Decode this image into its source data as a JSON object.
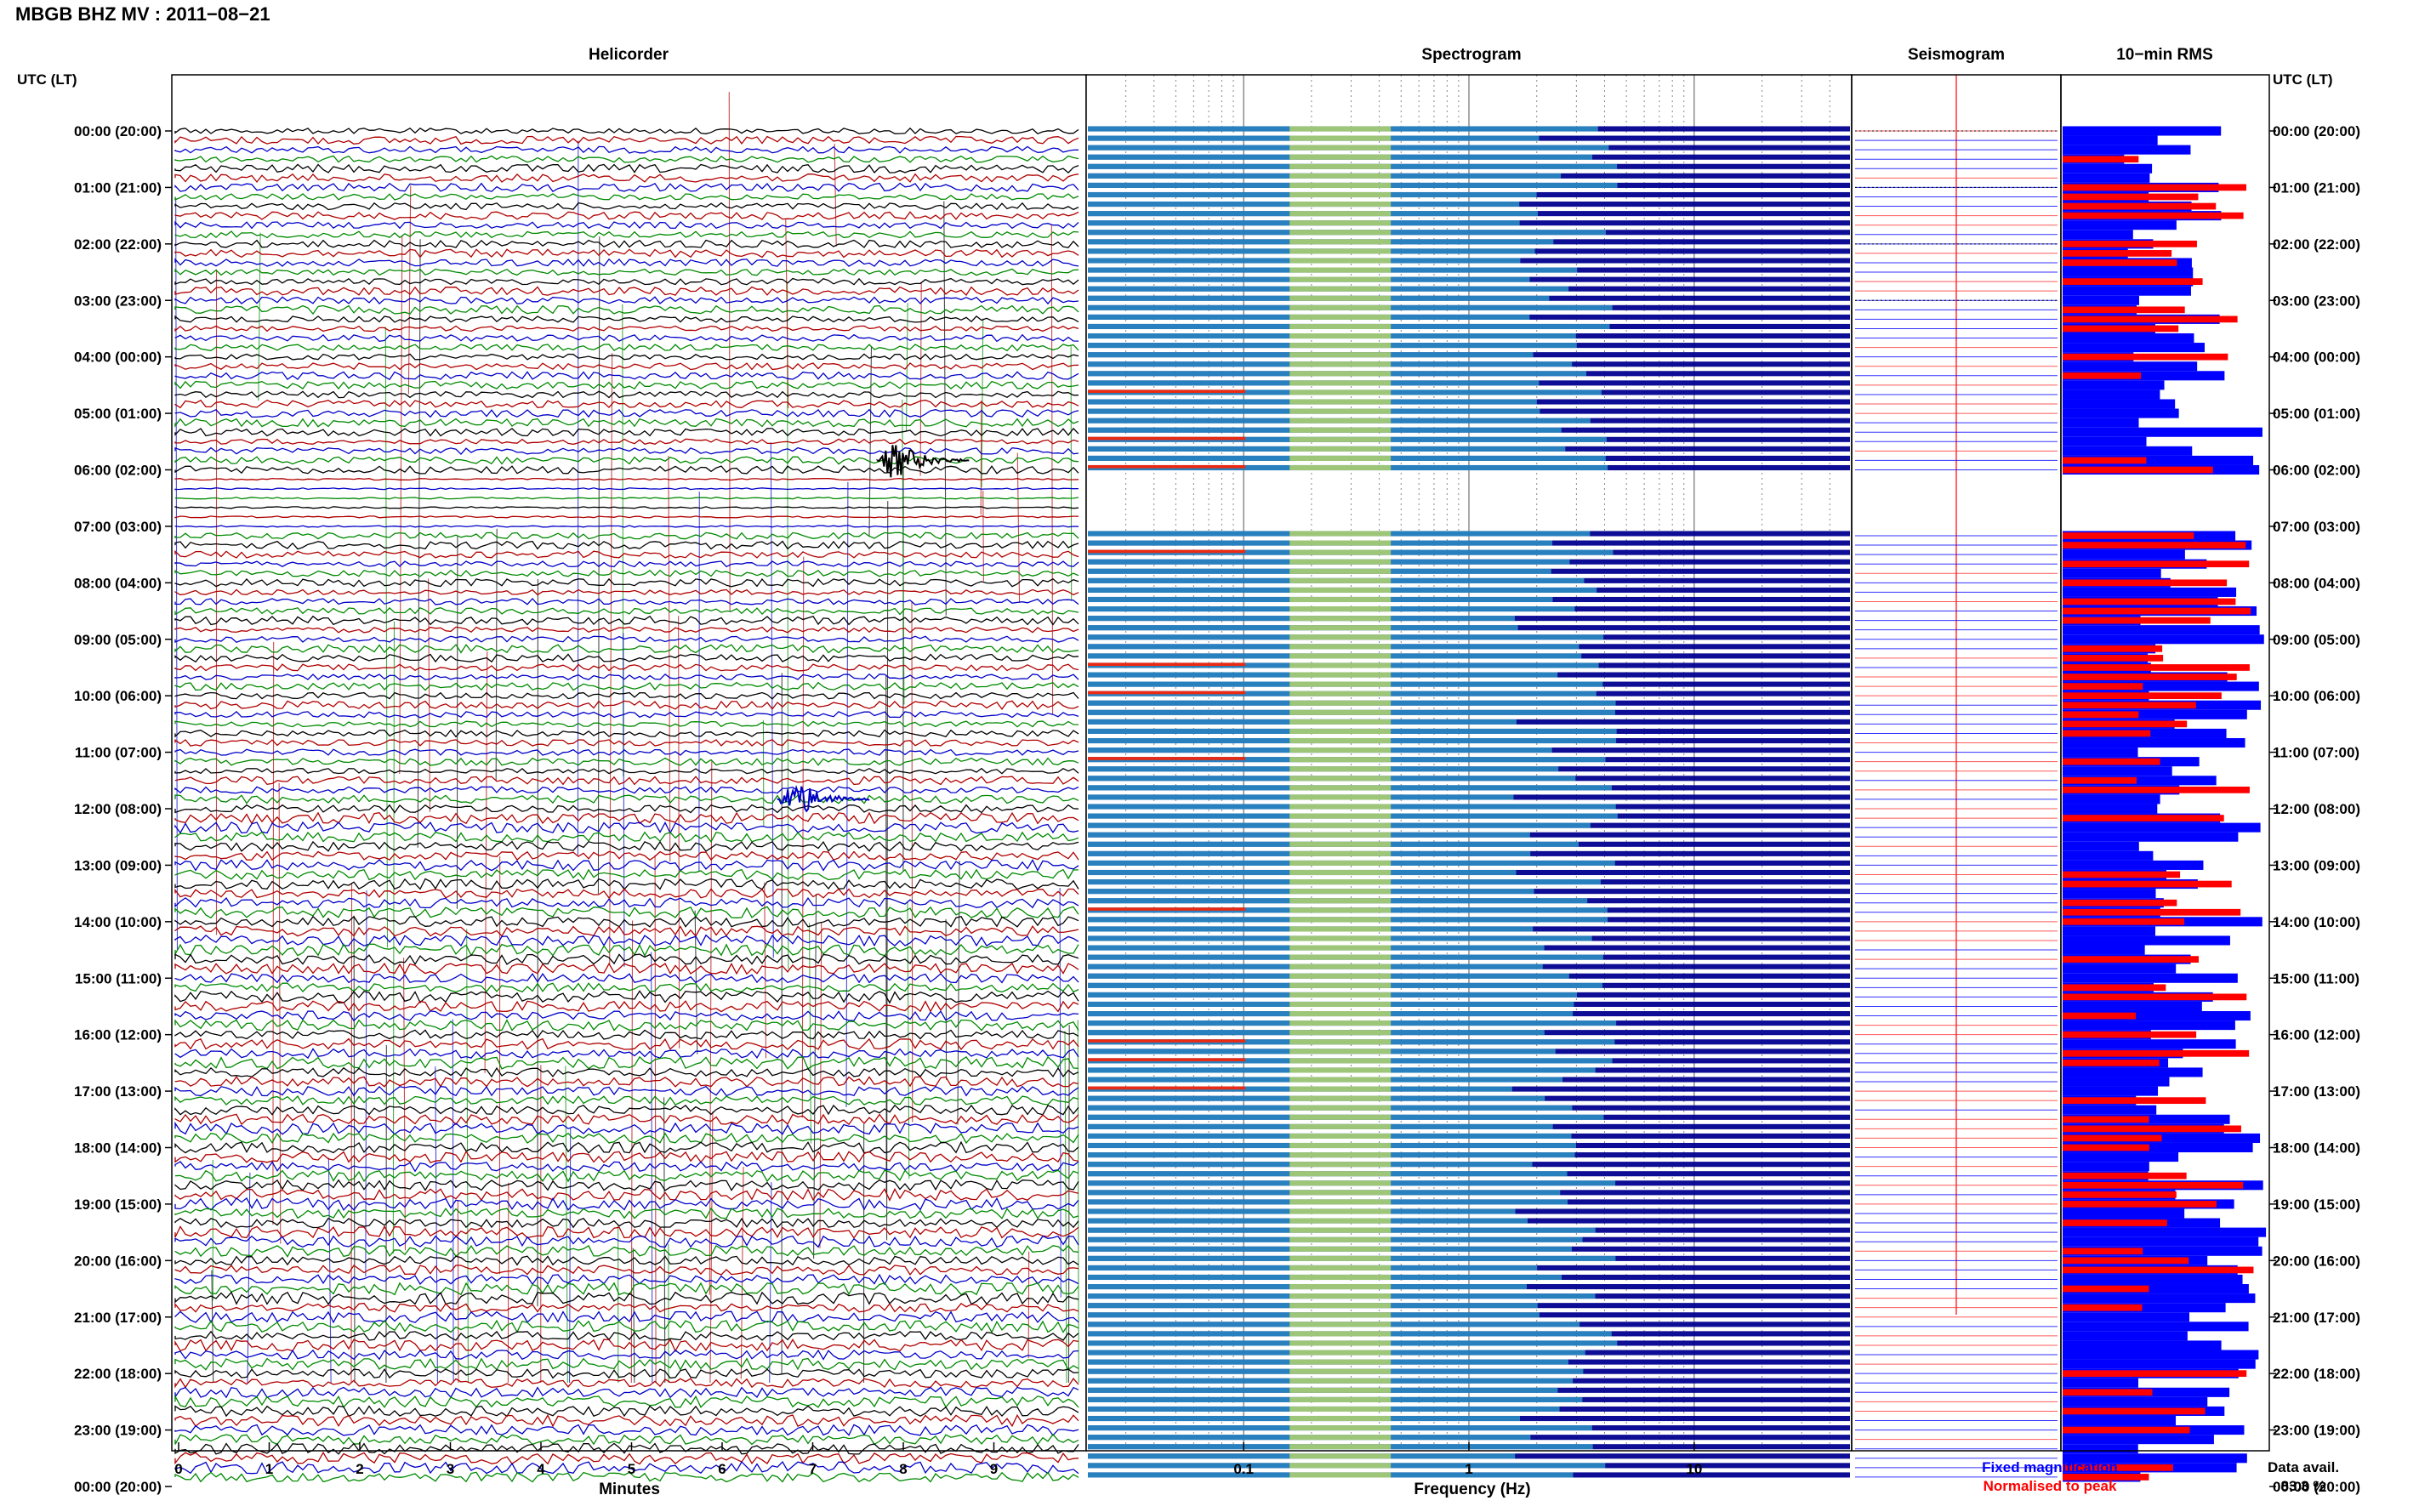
{
  "header": {
    "station_title": "MBGB BHZ MV : 2011−08−21",
    "time_axis_label_left": "UTC (LT)",
    "time_axis_label_right": "UTC (LT)"
  },
  "panels": {
    "helicorder": {
      "title": "Helicorder",
      "xlabel": "Minutes"
    },
    "spectrogram": {
      "title": "Spectrogram",
      "xlabel": "Frequency (Hz)"
    },
    "seismogram": {
      "title": "Seismogram"
    },
    "rms": {
      "title": "10−min RMS"
    }
  },
  "legend": {
    "fixed_label": "Fixed magnification",
    "normalised_label": "Normalised to peak",
    "fixed_color": "#0000ff",
    "normalised_color": "#ff0000"
  },
  "data_availability": {
    "label": "Data avail.",
    "value": "83.3 %"
  },
  "colors": {
    "trace_black": "#000000",
    "trace_red": "#b00000",
    "trace_blue": "#0000c8",
    "trace_green": "#008a00",
    "spectro_low": "#00008f",
    "spectro_mid": "#40e0e0",
    "spectro_high": "#ffff40",
    "spectro_peak": "#ff2000"
  },
  "chart_data": {
    "type": "heatmap",
    "time_ticks": [
      "00:00 (20:00)",
      "01:00 (21:00)",
      "02:00 (22:00)",
      "03:00 (23:00)",
      "04:00 (00:00)",
      "05:00 (01:00)",
      "06:00 (02:00)",
      "07:00 (03:00)",
      "08:00 (04:00)",
      "09:00 (05:00)",
      "10:00 (06:00)",
      "11:00 (07:00)",
      "12:00 (08:00)",
      "13:00 (09:00)",
      "14:00 (10:00)",
      "15:00 (11:00)",
      "16:00 (12:00)",
      "17:00 (13:00)",
      "18:00 (14:00)",
      "19:00 (15:00)",
      "20:00 (16:00)",
      "21:00 (17:00)",
      "22:00 (18:00)",
      "23:00 (19:00)",
      "00:00 (20:00)"
    ],
    "helicorder_minutes_ticks": [
      "0",
      "1",
      "2",
      "3",
      "4",
      "5",
      "6",
      "7",
      "8",
      "9"
    ],
    "helicorder_xlim": [
      0,
      10
    ],
    "frequency_ticks": [
      "0.1",
      "1",
      "10"
    ],
    "frequency_xlim": [
      0.02,
      50
    ],
    "frequency_scale": "log",
    "rms_segments": 144,
    "events": [
      {
        "time": "05:50",
        "minute": 7.9,
        "color": "black"
      },
      {
        "time": "11:50",
        "minute": 6.8,
        "color": "blue"
      }
    ]
  }
}
